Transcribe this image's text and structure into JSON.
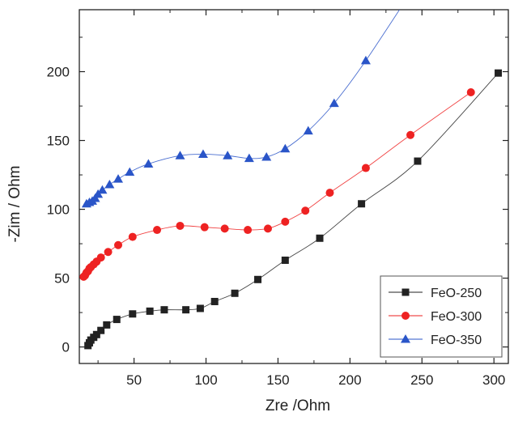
{
  "chart_data": {
    "type": "scatter",
    "title": "",
    "xlabel": "Zre /Ohm",
    "ylabel": "-Zim / Ohm",
    "xlim": [
      12,
      310
    ],
    "ylim": [
      -12,
      245
    ],
    "x_ticks": [
      50,
      100,
      150,
      200,
      250,
      300
    ],
    "y_ticks": [
      0,
      50,
      100,
      150,
      200
    ],
    "grid": false,
    "legend_position": "bottom-right",
    "series": [
      {
        "name": "FeO-250",
        "color": "#222222",
        "marker": "square",
        "points": [
          [
            18,
            1
          ],
          [
            19,
            3
          ],
          [
            20,
            5
          ],
          [
            22,
            7
          ],
          [
            24,
            9
          ],
          [
            27,
            12
          ],
          [
            31,
            16
          ],
          [
            38,
            20
          ],
          [
            49,
            24
          ],
          [
            61,
            26
          ],
          [
            71,
            27
          ],
          [
            86,
            27
          ],
          [
            96,
            28
          ],
          [
            106,
            33
          ],
          [
            120,
            39
          ],
          [
            136,
            49
          ],
          [
            155,
            63
          ],
          [
            179,
            79
          ],
          [
            208,
            104
          ],
          [
            247,
            135
          ],
          [
            303,
            199
          ]
        ]
      },
      {
        "name": "FeO-300",
        "color": "#ee2222",
        "marker": "circle",
        "points": [
          [
            15,
            51
          ],
          [
            16,
            52
          ],
          [
            17,
            54
          ],
          [
            18,
            55
          ],
          [
            19,
            57
          ],
          [
            20,
            58
          ],
          [
            22,
            60
          ],
          [
            24,
            62
          ],
          [
            27,
            65
          ],
          [
            32,
            69
          ],
          [
            39,
            74
          ],
          [
            49,
            80
          ],
          [
            66,
            85
          ],
          [
            82,
            88
          ],
          [
            99,
            87
          ],
          [
            113,
            86
          ],
          [
            129,
            85
          ],
          [
            143,
            86
          ],
          [
            155,
            91
          ],
          [
            169,
            99
          ],
          [
            186,
            112
          ],
          [
            211,
            130
          ],
          [
            242,
            154
          ],
          [
            284,
            185
          ]
        ]
      },
      {
        "name": "FeO-350",
        "color": "#2a55c8",
        "marker": "triangle",
        "points": [
          [
            17,
            104
          ],
          [
            19,
            105
          ],
          [
            21,
            106
          ],
          [
            23,
            108
          ],
          [
            25,
            111
          ],
          [
            28,
            114
          ],
          [
            33,
            118
          ],
          [
            39,
            122
          ],
          [
            47,
            127
          ],
          [
            60,
            133
          ],
          [
            82,
            139
          ],
          [
            98,
            140
          ],
          [
            115,
            139
          ],
          [
            130,
            137
          ],
          [
            142,
            138
          ],
          [
            155,
            144
          ],
          [
            171,
            157
          ],
          [
            189,
            177
          ],
          [
            211,
            208
          ]
        ],
        "line_extension": [
          [
            250,
            270
          ]
        ]
      }
    ]
  }
}
